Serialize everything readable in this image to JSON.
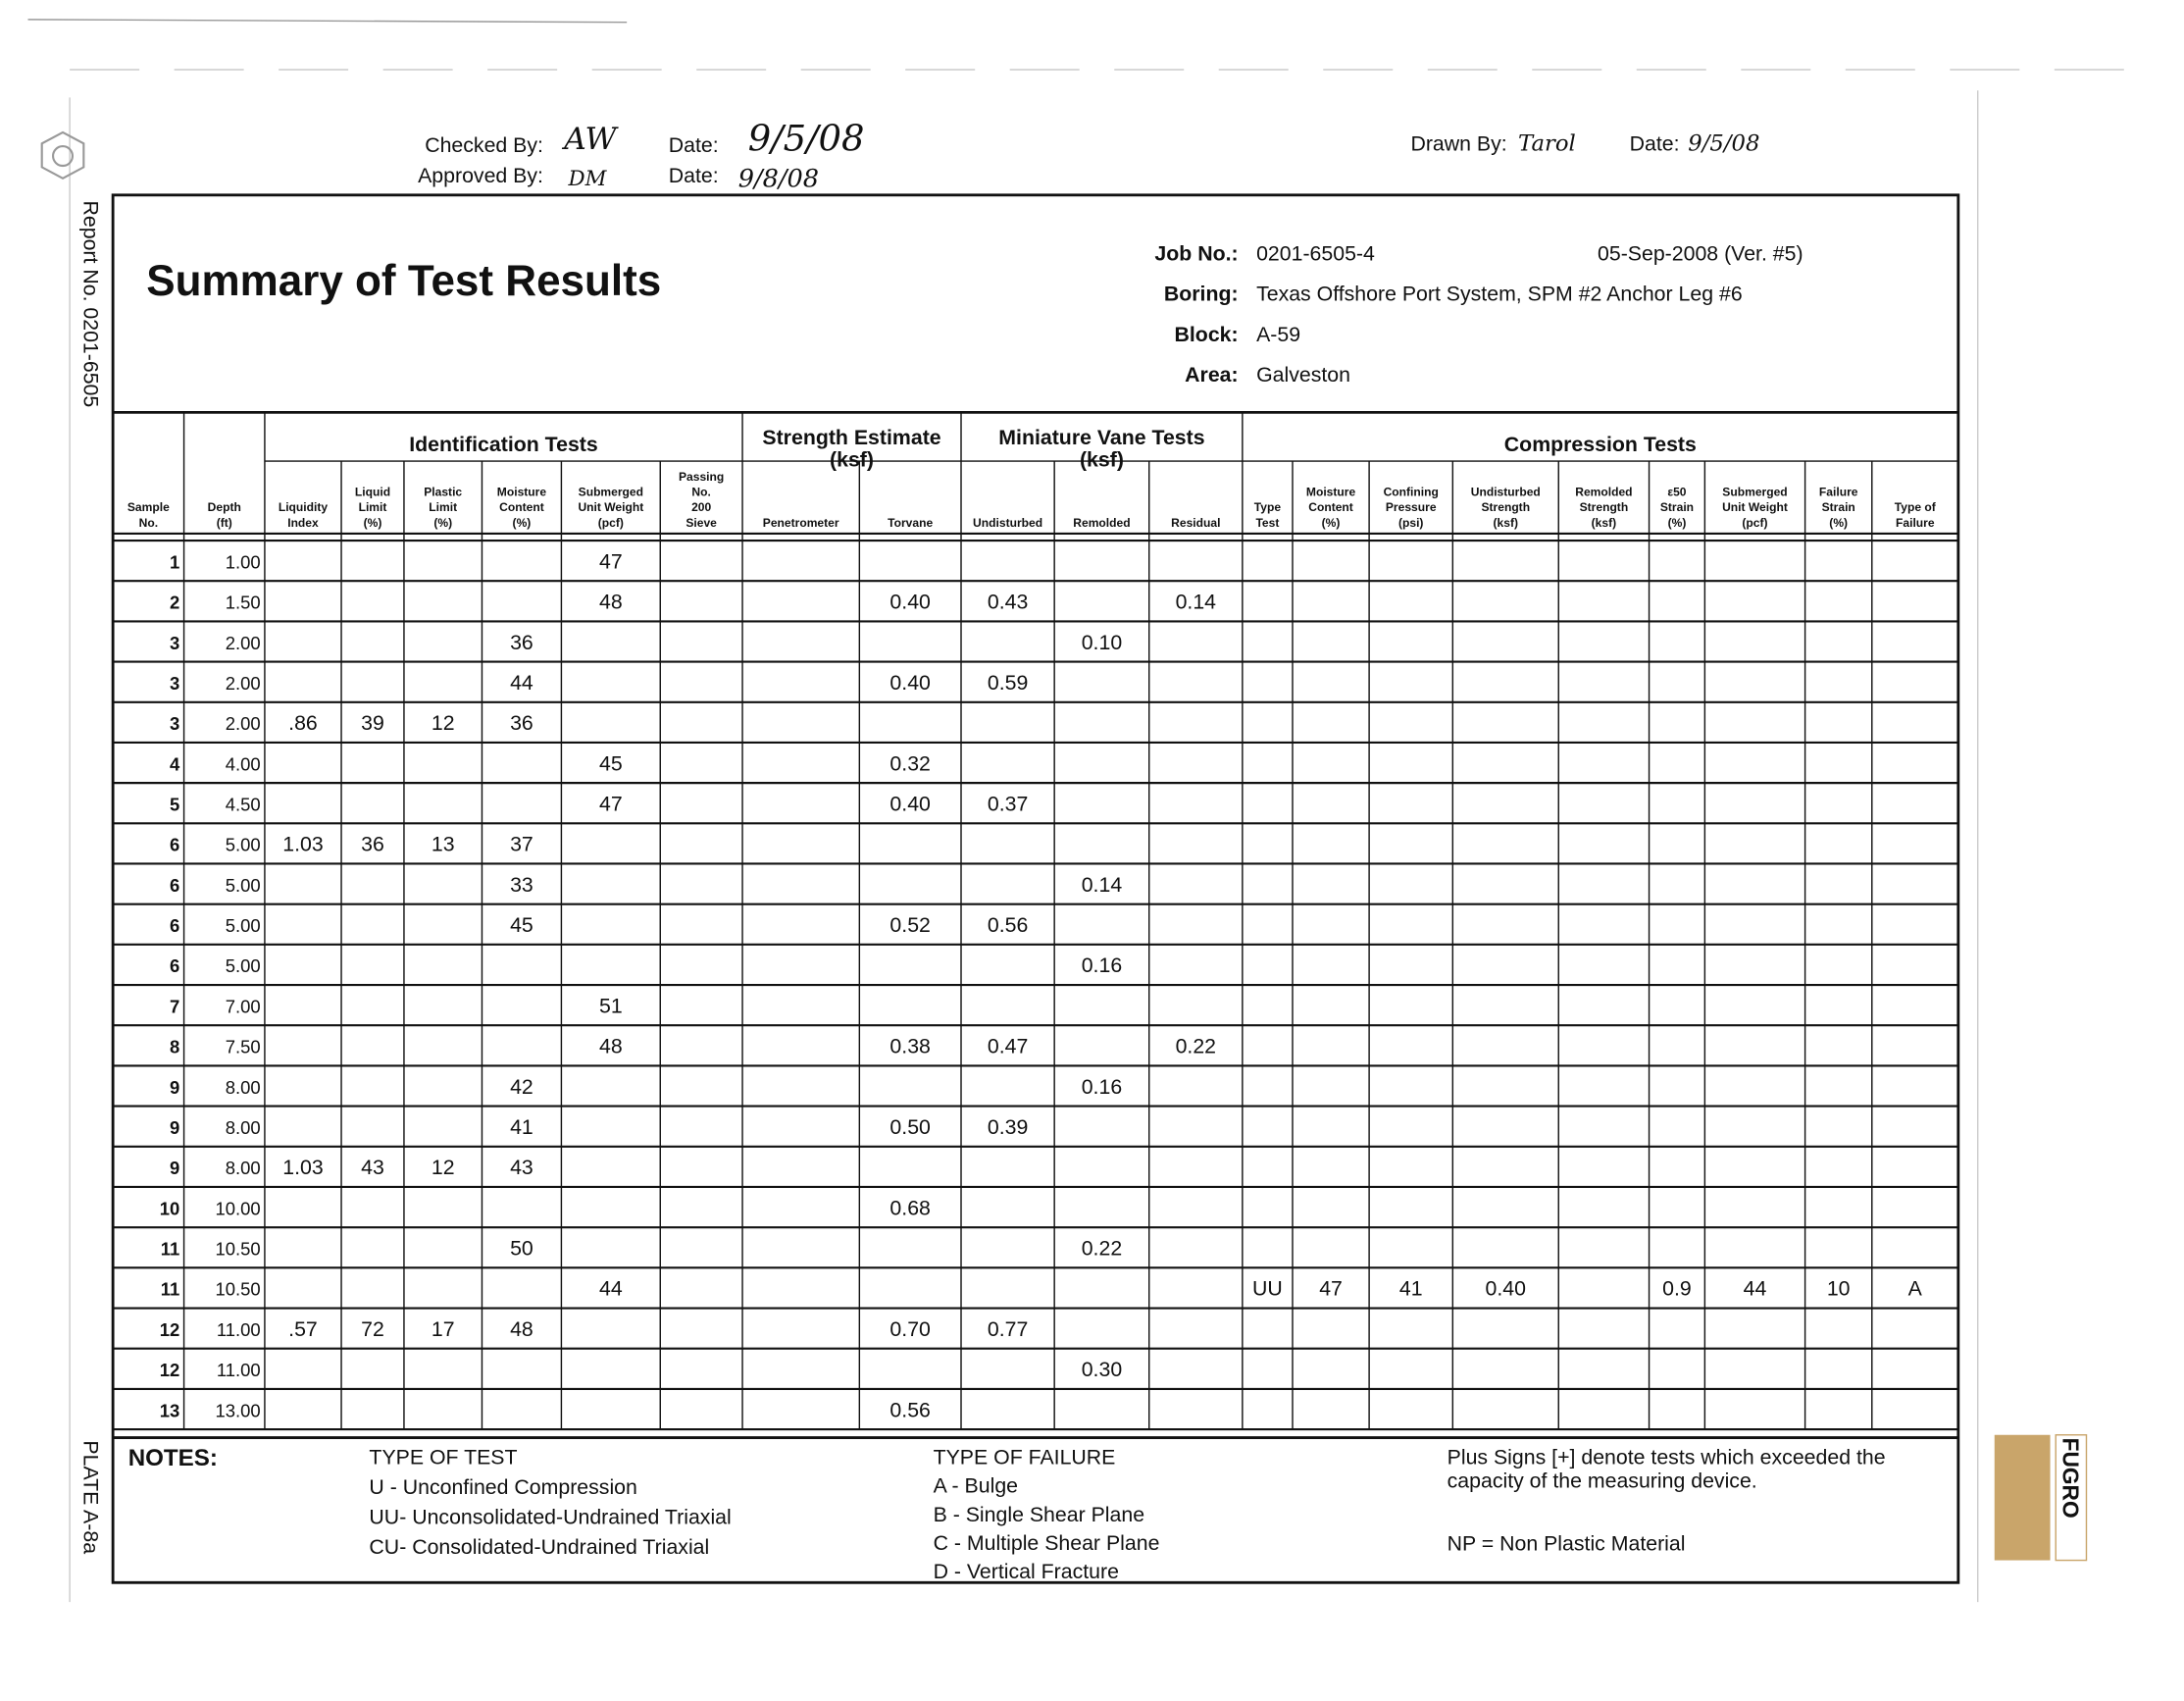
{
  "header": {
    "checked_by_label": "Checked By:",
    "checked_by": "AW",
    "date1_label": "Date:",
    "date1": "9/5/08",
    "approved_by_label": "Approved By:",
    "approved_by": "DM",
    "date2_label": "Date:",
    "date2": "9/8/08",
    "drawn_by_label": "Drawn By:",
    "drawn_by": "Tarol",
    "date3_label": "Date:",
    "date3": "9/5/08"
  },
  "side": {
    "report_no": "Report No. 0201-6505",
    "plate": "PLATE A-8a"
  },
  "title": "Summary of Test Results",
  "job": {
    "rows": [
      [
        "Job No.:",
        "0201-6505-4"
      ],
      [
        "Boring:",
        "Texas Offshore Port System, SPM #2 Anchor Leg #6"
      ],
      [
        "Block:",
        "A-59"
      ],
      [
        "Area:",
        "Galveston"
      ]
    ],
    "version": "05-Sep-2008  (Ver. #5)"
  },
  "table": {
    "groups": [
      [
        "Identification Tests"
      ],
      [
        "Strength Estimate",
        "(ksf)"
      ],
      [
        "Miniature Vane Tests",
        "(ksf)"
      ],
      [
        "Compression Tests"
      ]
    ],
    "columns": [
      [
        "Sample",
        "No."
      ],
      [
        "Depth",
        "(ft)"
      ],
      [
        "Liquidity",
        "Index"
      ],
      [
        "Liquid",
        "Limit",
        "(%)"
      ],
      [
        "Plastic",
        "Limit",
        "(%)"
      ],
      [
        "Moisture",
        "Content",
        "(%)"
      ],
      [
        "Submerged",
        "Unit Weight",
        "(pcf)"
      ],
      [
        "Passing",
        "No.",
        "200",
        "Sieve"
      ],
      [
        "Penetrometer"
      ],
      [
        "Torvane"
      ],
      [
        "Undisturbed"
      ],
      [
        "Remolded"
      ],
      [
        "Residual"
      ],
      [
        "Type",
        "Test"
      ],
      [
        "Moisture",
        "Content",
        "(%)"
      ],
      [
        "Confining",
        "Pressure",
        "(psi)"
      ],
      [
        "Undisturbed",
        "Strength",
        "(ksf)"
      ],
      [
        "Remolded",
        "Strength",
        "(ksf)"
      ],
      [
        "ε50",
        "Strain",
        "(%)"
      ],
      [
        "Submerged",
        "Unit Weight",
        "(pcf)"
      ],
      [
        "Failure",
        "Strain",
        "(%)"
      ],
      [
        "Type of",
        "Failure"
      ]
    ],
    "rows": [
      [
        "1",
        "1.00",
        null,
        null,
        null,
        null,
        "47",
        null,
        null,
        null,
        null,
        null,
        null,
        null,
        null,
        null,
        null,
        null,
        null,
        null,
        null,
        null
      ],
      [
        "2",
        "1.50",
        null,
        null,
        null,
        null,
        "48",
        null,
        null,
        "0.40",
        "0.43",
        null,
        "0.14",
        null,
        null,
        null,
        null,
        null,
        null,
        null,
        null,
        null
      ],
      [
        "3",
        "2.00",
        null,
        null,
        null,
        "36",
        null,
        null,
        null,
        null,
        null,
        "0.10",
        null,
        null,
        null,
        null,
        null,
        null,
        null,
        null,
        null,
        null
      ],
      [
        "3",
        "2.00",
        null,
        null,
        null,
        "44",
        null,
        null,
        null,
        "0.40",
        "0.59",
        null,
        null,
        null,
        null,
        null,
        null,
        null,
        null,
        null,
        null,
        null
      ],
      [
        "3",
        "2.00",
        ".86",
        "39",
        "12",
        "36",
        null,
        null,
        null,
        null,
        null,
        null,
        null,
        null,
        null,
        null,
        null,
        null,
        null,
        null,
        null,
        null
      ],
      [
        "4",
        "4.00",
        null,
        null,
        null,
        null,
        "45",
        null,
        null,
        "0.32",
        null,
        null,
        null,
        null,
        null,
        null,
        null,
        null,
        null,
        null,
        null,
        null
      ],
      [
        "5",
        "4.50",
        null,
        null,
        null,
        null,
        "47",
        null,
        null,
        "0.40",
        "0.37",
        null,
        null,
        null,
        null,
        null,
        null,
        null,
        null,
        null,
        null,
        null
      ],
      [
        "6",
        "5.00",
        "1.03",
        "36",
        "13",
        "37",
        null,
        null,
        null,
        null,
        null,
        null,
        null,
        null,
        null,
        null,
        null,
        null,
        null,
        null,
        null,
        null
      ],
      [
        "6",
        "5.00",
        null,
        null,
        null,
        "33",
        null,
        null,
        null,
        null,
        null,
        "0.14",
        null,
        null,
        null,
        null,
        null,
        null,
        null,
        null,
        null,
        null
      ],
      [
        "6",
        "5.00",
        null,
        null,
        null,
        "45",
        null,
        null,
        null,
        "0.52",
        "0.56",
        null,
        null,
        null,
        null,
        null,
        null,
        null,
        null,
        null,
        null,
        null
      ],
      [
        "6",
        "5.00",
        null,
        null,
        null,
        null,
        null,
        null,
        null,
        null,
        null,
        "0.16",
        null,
        null,
        null,
        null,
        null,
        null,
        null,
        null,
        null,
        null
      ],
      [
        "7",
        "7.00",
        null,
        null,
        null,
        null,
        "51",
        null,
        null,
        null,
        null,
        null,
        null,
        null,
        null,
        null,
        null,
        null,
        null,
        null,
        null,
        null
      ],
      [
        "8",
        "7.50",
        null,
        null,
        null,
        null,
        "48",
        null,
        null,
        "0.38",
        "0.47",
        null,
        "0.22",
        null,
        null,
        null,
        null,
        null,
        null,
        null,
        null,
        null
      ],
      [
        "9",
        "8.00",
        null,
        null,
        null,
        "42",
        null,
        null,
        null,
        null,
        null,
        "0.16",
        null,
        null,
        null,
        null,
        null,
        null,
        null,
        null,
        null,
        null
      ],
      [
        "9",
        "8.00",
        null,
        null,
        null,
        "41",
        null,
        null,
        null,
        "0.50",
        "0.39",
        null,
        null,
        null,
        null,
        null,
        null,
        null,
        null,
        null,
        null,
        null
      ],
      [
        "9",
        "8.00",
        "1.03",
        "43",
        "12",
        "43",
        null,
        null,
        null,
        null,
        null,
        null,
        null,
        null,
        null,
        null,
        null,
        null,
        null,
        null,
        null,
        null
      ],
      [
        "10",
        "10.00",
        null,
        null,
        null,
        null,
        null,
        null,
        null,
        "0.68",
        null,
        null,
        null,
        null,
        null,
        null,
        null,
        null,
        null,
        null,
        null,
        null
      ],
      [
        "11",
        "10.50",
        null,
        null,
        null,
        "50",
        null,
        null,
        null,
        null,
        null,
        "0.22",
        null,
        null,
        null,
        null,
        null,
        null,
        null,
        null,
        null,
        null
      ],
      [
        "11",
        "10.50",
        null,
        null,
        null,
        null,
        "44",
        null,
        null,
        null,
        null,
        null,
        null,
        "UU",
        "47",
        "41",
        "0.40",
        null,
        "0.9",
        "44",
        "10",
        "A"
      ],
      [
        "12",
        "11.00",
        ".57",
        "72",
        "17",
        "48",
        null,
        null,
        null,
        "0.70",
        "0.77",
        null,
        null,
        null,
        null,
        null,
        null,
        null,
        null,
        null,
        null,
        null
      ],
      [
        "12",
        "11.00",
        null,
        null,
        null,
        null,
        null,
        null,
        null,
        null,
        null,
        "0.30",
        null,
        null,
        null,
        null,
        null,
        null,
        null,
        null,
        null,
        null
      ],
      [
        "13",
        "13.00",
        null,
        null,
        null,
        null,
        null,
        null,
        null,
        "0.56",
        null,
        null,
        null,
        null,
        null,
        null,
        null,
        null,
        null,
        null,
        null,
        null
      ]
    ]
  },
  "notes": {
    "label": "NOTES:",
    "test_types": [
      "TYPE OF TEST",
      "U  - Unconfined Compression",
      "UU- Unconsolidated-Undrained Triaxial",
      "CU- Consolidated-Undrained Triaxial"
    ],
    "failure_types": [
      "TYPE OF FAILURE",
      "A - Bulge",
      "B - Single Shear Plane",
      "C - Multiple Shear Plane",
      "D - Vertical Fracture"
    ],
    "remarks": [
      "Plus Signs [+] denote tests which exceeded the",
      "capacity of the measuring device.",
      "NP = Non Plastic Material"
    ]
  },
  "logo": "FUGRO"
}
